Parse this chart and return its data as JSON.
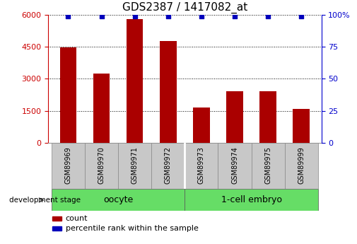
{
  "title": "GDS2387 / 1417082_at",
  "samples": [
    "GSM89969",
    "GSM89970",
    "GSM89971",
    "GSM89972",
    "GSM89973",
    "GSM89974",
    "GSM89975",
    "GSM89999"
  ],
  "counts": [
    4450,
    3250,
    5800,
    4750,
    1650,
    2400,
    2400,
    1600
  ],
  "percentile_ranks": [
    99,
    99,
    99,
    99,
    99,
    99,
    99,
    99
  ],
  "groups": [
    {
      "label": "oocyte",
      "indices": [
        0,
        1,
        2,
        3
      ],
      "color": "#66dd66"
    },
    {
      "label": "1-cell embryo",
      "indices": [
        4,
        5,
        6,
        7
      ],
      "color": "#66dd66"
    }
  ],
  "bar_color": "#aa0000",
  "dot_color": "#0000bb",
  "left_axis_color": "#cc0000",
  "right_axis_color": "#0000cc",
  "left_ylim": [
    0,
    6000
  ],
  "left_yticks": [
    0,
    1500,
    3000,
    4500,
    6000
  ],
  "right_ylim": [
    0,
    100
  ],
  "right_yticks": [
    0,
    25,
    50,
    75,
    100
  ],
  "grid_color": "black",
  "bg_color": "#ffffff",
  "dev_stage_label": "development stage",
  "legend_count_label": "count",
  "legend_percentile_label": "percentile rank within the sample",
  "group_label_fontsize": 9,
  "title_fontsize": 11,
  "tick_label_fontsize": 8,
  "sample_label_fontsize": 7,
  "bar_width": 0.5,
  "label_box_color": "#c8c8c8",
  "right_ytick_labels": [
    "0",
    "25",
    "50",
    "75",
    "100%"
  ]
}
